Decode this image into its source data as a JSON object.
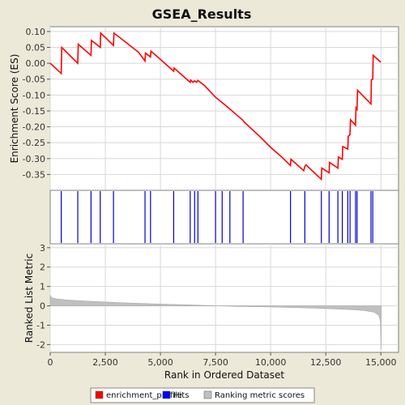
{
  "chart_data": {
    "type": "line",
    "title": "GSEA_Results",
    "xlabel": "Rank in Ordered Dataset",
    "x_ticks": [
      0,
      2500,
      5000,
      7500,
      10000,
      12500,
      15000
    ],
    "x_tick_labels": [
      "0",
      "2,500",
      "5,000",
      "7,500",
      "10,000",
      "12,500",
      "15,000"
    ],
    "xlim": [
      0,
      15800
    ],
    "grid": true,
    "panels": {
      "enrichment": {
        "ylabel": "Enrichment Score (ES)",
        "ylim": [
          -0.4,
          0.115
        ],
        "y_ticks": [
          0.1,
          0.05,
          0.0,
          -0.05,
          -0.1,
          -0.15,
          -0.2,
          -0.25,
          -0.3,
          -0.35
        ],
        "y_tick_labels": [
          "0.10",
          "0.05",
          "0.00",
          "-0.05",
          "-0.10",
          "-0.15",
          "-0.20",
          "-0.25",
          "-0.30",
          "-0.35"
        ],
        "line_color": "#ff0000",
        "points": [
          [
            0,
            0.0
          ],
          [
            500,
            -0.032
          ],
          [
            520,
            0.05
          ],
          [
            1250,
            0.0
          ],
          [
            1270,
            0.06
          ],
          [
            1850,
            0.025
          ],
          [
            1870,
            0.072
          ],
          [
            2270,
            0.05
          ],
          [
            2290,
            0.095
          ],
          [
            2870,
            0.056
          ],
          [
            2890,
            0.095
          ],
          [
            3500,
            0.062
          ],
          [
            4000,
            0.035
          ],
          [
            4300,
            0.007
          ],
          [
            4320,
            0.032
          ],
          [
            4550,
            0.02
          ],
          [
            4570,
            0.038
          ],
          [
            5000,
            0.012
          ],
          [
            5600,
            -0.025
          ],
          [
            5620,
            -0.015
          ],
          [
            6350,
            -0.06
          ],
          [
            6370,
            -0.053
          ],
          [
            6480,
            -0.06
          ],
          [
            6550,
            -0.055
          ],
          [
            6640,
            -0.06
          ],
          [
            6700,
            -0.054
          ],
          [
            7000,
            -0.07
          ],
          [
            7500,
            -0.107
          ],
          [
            8000,
            -0.135
          ],
          [
            8500,
            -0.165
          ],
          [
            8750,
            -0.18
          ],
          [
            8800,
            -0.185
          ],
          [
            9500,
            -0.23
          ],
          [
            10000,
            -0.265
          ],
          [
            10500,
            -0.295
          ],
          [
            10900,
            -0.322
          ],
          [
            10920,
            -0.302
          ],
          [
            11500,
            -0.338
          ],
          [
            11550,
            -0.325
          ],
          [
            11600,
            -0.32
          ],
          [
            12300,
            -0.365
          ],
          [
            12320,
            -0.33
          ],
          [
            12650,
            -0.345
          ],
          [
            12670,
            -0.312
          ],
          [
            13050,
            -0.33
          ],
          [
            13070,
            -0.295
          ],
          [
            13250,
            -0.302
          ],
          [
            13270,
            -0.262
          ],
          [
            13500,
            -0.27
          ],
          [
            13520,
            -0.23
          ],
          [
            13600,
            -0.225
          ],
          [
            13620,
            -0.178
          ],
          [
            13850,
            -0.195
          ],
          [
            13870,
            -0.14
          ],
          [
            13920,
            -0.145
          ],
          [
            13940,
            -0.085
          ],
          [
            14550,
            -0.128
          ],
          [
            14570,
            -0.052
          ],
          [
            14630,
            -0.05
          ],
          [
            14650,
            0.025
          ],
          [
            15000,
            0.003
          ]
        ]
      },
      "hits": {
        "bar_color": "#0000cc",
        "positions": [
          500,
          1250,
          1850,
          2270,
          2870,
          4300,
          4550,
          5600,
          6350,
          6550,
          6700,
          7500,
          7800,
          8150,
          8750,
          10900,
          11550,
          12300,
          12650,
          13050,
          13250,
          13500,
          13600,
          13850,
          13920,
          14550,
          14630
        ]
      },
      "ranked_metric": {
        "ylabel": "Ranked List Metric",
        "ylim": [
          -2.4,
          3.2
        ],
        "y_ticks": [
          3,
          2,
          1,
          0,
          -1,
          -2
        ],
        "y_tick_labels": [
          "3",
          "2",
          "1",
          "0",
          "-1",
          "-2"
        ],
        "fill_color": "#c0c0c0",
        "points": [
          [
            0,
            0.55
          ],
          [
            60,
            0.42
          ],
          [
            300,
            0.36
          ],
          [
            800,
            0.3
          ],
          [
            1500,
            0.25
          ],
          [
            2500,
            0.2
          ],
          [
            3500,
            0.15
          ],
          [
            5000,
            0.09
          ],
          [
            6500,
            0.04
          ],
          [
            7600,
            0.0
          ],
          [
            8500,
            -0.03
          ],
          [
            10000,
            -0.06
          ],
          [
            11000,
            -0.09
          ],
          [
            12000,
            -0.12
          ],
          [
            13000,
            -0.16
          ],
          [
            13800,
            -0.2
          ],
          [
            14300,
            -0.25
          ],
          [
            14700,
            -0.33
          ],
          [
            14900,
            -0.48
          ],
          [
            14980,
            -0.8
          ],
          [
            15010,
            -2.25
          ],
          [
            15020,
            0.0
          ]
        ]
      }
    },
    "legend": {
      "position": "bottom",
      "items": [
        {
          "label": "enrichment_profile",
          "color": "#ff0000"
        },
        {
          "label": "Hits",
          "color": "#0000ff"
        },
        {
          "label": "Ranking metric scores",
          "color": "#c0c0c0"
        }
      ]
    }
  }
}
